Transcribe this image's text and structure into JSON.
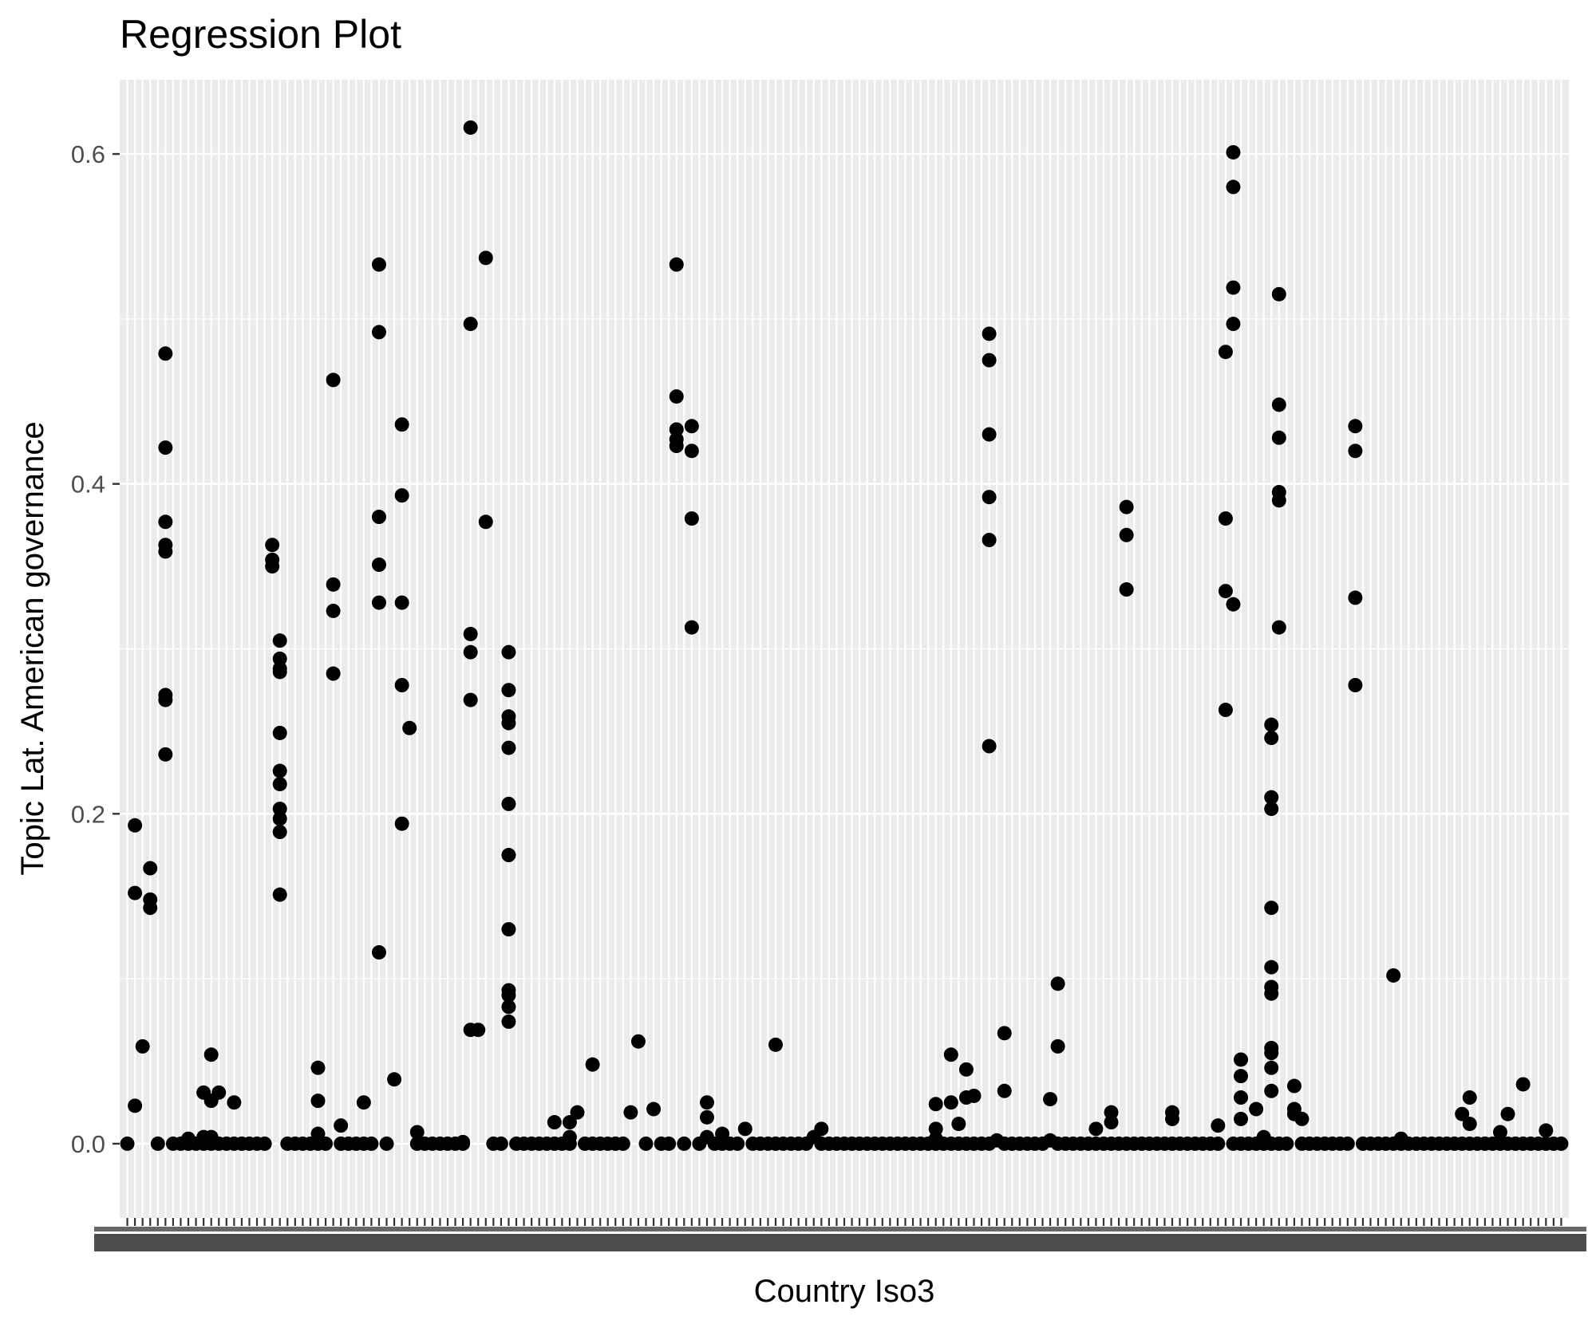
{
  "chart_data": {
    "type": "scatter",
    "title": "Regression Plot",
    "xlabel": "Country Iso3",
    "ylabel": "Topic Lat. American governance",
    "x_axis": "categorical",
    "x_tick_labels_overlapping": true,
    "ylim": [
      -0.045,
      0.645
    ],
    "y_ticks": [
      0.0,
      0.2,
      0.4,
      0.6
    ],
    "y_tick_labels": [
      "0.0",
      "0.2",
      "0.4",
      "0.6"
    ],
    "grid": true,
    "background": "#ebebeb",
    "point_color": "#000000",
    "category_count": 189,
    "points": [
      [
        0,
        0.0
      ],
      [
        1,
        0.193
      ],
      [
        1,
        0.152
      ],
      [
        1,
        0.023
      ],
      [
        2,
        0.059
      ],
      [
        3,
        0.167
      ],
      [
        3,
        0.148
      ],
      [
        3,
        0.143
      ],
      [
        4,
        0.0
      ],
      [
        5,
        0.479
      ],
      [
        5,
        0.422
      ],
      [
        5,
        0.377
      ],
      [
        5,
        0.363
      ],
      [
        5,
        0.359
      ],
      [
        5,
        0.272
      ],
      [
        5,
        0.269
      ],
      [
        5,
        0.236
      ],
      [
        6,
        0.0
      ],
      [
        7,
        0.0
      ],
      [
        8,
        0.003
      ],
      [
        8,
        0.0
      ],
      [
        9,
        0.0
      ],
      [
        10,
        0.031
      ],
      [
        10,
        0.004
      ],
      [
        10,
        0.0
      ],
      [
        11,
        0.054
      ],
      [
        11,
        0.026
      ],
      [
        11,
        0.004
      ],
      [
        11,
        0.0
      ],
      [
        12,
        0.031
      ],
      [
        12,
        0.0
      ],
      [
        13,
        0.0
      ],
      [
        14,
        0.025
      ],
      [
        14,
        0.0
      ],
      [
        15,
        0.0
      ],
      [
        16,
        0.0
      ],
      [
        17,
        0.0
      ],
      [
        18,
        0.0
      ],
      [
        19,
        0.363
      ],
      [
        19,
        0.354
      ],
      [
        19,
        0.35
      ],
      [
        20,
        0.305
      ],
      [
        20,
        0.294
      ],
      [
        20,
        0.288
      ],
      [
        20,
        0.286
      ],
      [
        20,
        0.249
      ],
      [
        20,
        0.226
      ],
      [
        20,
        0.218
      ],
      [
        20,
        0.203
      ],
      [
        20,
        0.197
      ],
      [
        20,
        0.189
      ],
      [
        20,
        0.151
      ],
      [
        21,
        0.0
      ],
      [
        22,
        0.0
      ],
      [
        23,
        0.0
      ],
      [
        24,
        0.0
      ],
      [
        25,
        0.046
      ],
      [
        25,
        0.026
      ],
      [
        25,
        0.006
      ],
      [
        25,
        0.0
      ],
      [
        26,
        0.0
      ],
      [
        27,
        0.463
      ],
      [
        27,
        0.339
      ],
      [
        27,
        0.323
      ],
      [
        27,
        0.285
      ],
      [
        28,
        0.011
      ],
      [
        28,
        0.0
      ],
      [
        29,
        0.0
      ],
      [
        30,
        0.0
      ],
      [
        31,
        0.025
      ],
      [
        31,
        0.0
      ],
      [
        32,
        0.0
      ],
      [
        33,
        0.533
      ],
      [
        33,
        0.492
      ],
      [
        33,
        0.38
      ],
      [
        33,
        0.351
      ],
      [
        33,
        0.328
      ],
      [
        33,
        0.116
      ],
      [
        34,
        0.0
      ],
      [
        35,
        0.039
      ],
      [
        36,
        0.436
      ],
      [
        36,
        0.393
      ],
      [
        36,
        0.328
      ],
      [
        36,
        0.278
      ],
      [
        36,
        0.194
      ],
      [
        37,
        0.252
      ],
      [
        38,
        0.007
      ],
      [
        38,
        0.0
      ],
      [
        39,
        0.0
      ],
      [
        40,
        0.0
      ],
      [
        41,
        0.0
      ],
      [
        42,
        0.0
      ],
      [
        43,
        0.0
      ],
      [
        44,
        0.001
      ],
      [
        44,
        0.0
      ],
      [
        45,
        0.616
      ],
      [
        45,
        0.497
      ],
      [
        45,
        0.309
      ],
      [
        45,
        0.298
      ],
      [
        45,
        0.269
      ],
      [
        45,
        0.069
      ],
      [
        46,
        0.069
      ],
      [
        47,
        0.537
      ],
      [
        47,
        0.377
      ],
      [
        48,
        0.0
      ],
      [
        49,
        0.0
      ],
      [
        50,
        0.298
      ],
      [
        50,
        0.275
      ],
      [
        50,
        0.259
      ],
      [
        50,
        0.255
      ],
      [
        50,
        0.24
      ],
      [
        50,
        0.206
      ],
      [
        50,
        0.175
      ],
      [
        50,
        0.13
      ],
      [
        50,
        0.093
      ],
      [
        50,
        0.09
      ],
      [
        50,
        0.083
      ],
      [
        50,
        0.074
      ],
      [
        51,
        0.0
      ],
      [
        52,
        0.0
      ],
      [
        53,
        0.0
      ],
      [
        54,
        0.0
      ],
      [
        55,
        0.0
      ],
      [
        56,
        0.013
      ],
      [
        56,
        0.0
      ],
      [
        57,
        0.0
      ],
      [
        58,
        0.013
      ],
      [
        58,
        0.004
      ],
      [
        58,
        0.0
      ],
      [
        59,
        0.019
      ],
      [
        60,
        0.0
      ],
      [
        61,
        0.048
      ],
      [
        61,
        0.0
      ],
      [
        62,
        0.0
      ],
      [
        63,
        0.0
      ],
      [
        64,
        0.0
      ],
      [
        65,
        0.0
      ],
      [
        66,
        0.019
      ],
      [
        67,
        0.062
      ],
      [
        68,
        0.0
      ],
      [
        69,
        0.021
      ],
      [
        70,
        0.0
      ],
      [
        71,
        0.0
      ],
      [
        72,
        0.533
      ],
      [
        72,
        0.453
      ],
      [
        72,
        0.433
      ],
      [
        72,
        0.427
      ],
      [
        72,
        0.423
      ],
      [
        73,
        0.0
      ],
      [
        74,
        0.435
      ],
      [
        74,
        0.42
      ],
      [
        74,
        0.379
      ],
      [
        74,
        0.313
      ],
      [
        75,
        0.0
      ],
      [
        76,
        0.025
      ],
      [
        76,
        0.016
      ],
      [
        76,
        0.004
      ],
      [
        77,
        0.0
      ],
      [
        78,
        0.006
      ],
      [
        78,
        0.0
      ],
      [
        79,
        0.0
      ],
      [
        80,
        0.0
      ],
      [
        81,
        0.009
      ],
      [
        82,
        0.0
      ],
      [
        83,
        0.0
      ],
      [
        84,
        0.0
      ],
      [
        85,
        0.06
      ],
      [
        85,
        0.0
      ],
      [
        86,
        0.0
      ],
      [
        87,
        0.0
      ],
      [
        88,
        0.0
      ],
      [
        89,
        0.0
      ],
      [
        90,
        0.004
      ],
      [
        91,
        0.009
      ],
      [
        91,
        0.0
      ],
      [
        92,
        0.0
      ],
      [
        93,
        0.0
      ],
      [
        94,
        0.0
      ],
      [
        95,
        0.0
      ],
      [
        96,
        0.0
      ],
      [
        97,
        0.0
      ],
      [
        98,
        0.0
      ],
      [
        99,
        0.0
      ],
      [
        100,
        0.0
      ],
      [
        101,
        0.0
      ],
      [
        102,
        0.0
      ],
      [
        103,
        0.0
      ],
      [
        104,
        0.0
      ],
      [
        105,
        0.0
      ],
      [
        106,
        0.024
      ],
      [
        106,
        0.009
      ],
      [
        106,
        0.003
      ],
      [
        106,
        0.0
      ],
      [
        107,
        0.0
      ],
      [
        108,
        0.054
      ],
      [
        108,
        0.025
      ],
      [
        108,
        0.0
      ],
      [
        109,
        0.012
      ],
      [
        109,
        0.0
      ],
      [
        110,
        0.045
      ],
      [
        110,
        0.028
      ],
      [
        110,
        0.0
      ],
      [
        111,
        0.029
      ],
      [
        111,
        0.0
      ],
      [
        112,
        0.0
      ],
      [
        113,
        0.491
      ],
      [
        113,
        0.475
      ],
      [
        113,
        0.43
      ],
      [
        113,
        0.392
      ],
      [
        113,
        0.366
      ],
      [
        113,
        0.241
      ],
      [
        113,
        0.0
      ],
      [
        114,
        0.002
      ],
      [
        115,
        0.067
      ],
      [
        115,
        0.032
      ],
      [
        115,
        0.0
      ],
      [
        116,
        0.0
      ],
      [
        117,
        0.0
      ],
      [
        118,
        0.0
      ],
      [
        119,
        0.0
      ],
      [
        120,
        0.0
      ],
      [
        121,
        0.027
      ],
      [
        121,
        0.002
      ],
      [
        122,
        0.097
      ],
      [
        122,
        0.059
      ],
      [
        122,
        0.0
      ],
      [
        123,
        0.0
      ],
      [
        124,
        0.0
      ],
      [
        125,
        0.0
      ],
      [
        126,
        0.0
      ],
      [
        127,
        0.009
      ],
      [
        127,
        0.0
      ],
      [
        128,
        0.0
      ],
      [
        129,
        0.019
      ],
      [
        129,
        0.013
      ],
      [
        129,
        0.0
      ],
      [
        130,
        0.0
      ],
      [
        131,
        0.386
      ],
      [
        131,
        0.369
      ],
      [
        131,
        0.336
      ],
      [
        131,
        0.0
      ],
      [
        132,
        0.0
      ],
      [
        133,
        0.0
      ],
      [
        134,
        0.0
      ],
      [
        135,
        0.0
      ],
      [
        136,
        0.0
      ],
      [
        137,
        0.019
      ],
      [
        137,
        0.015
      ],
      [
        137,
        0.0
      ],
      [
        138,
        0.0
      ],
      [
        139,
        0.0
      ],
      [
        140,
        0.0
      ],
      [
        141,
        0.0
      ],
      [
        142,
        0.0
      ],
      [
        143,
        0.011
      ],
      [
        143,
        0.0
      ],
      [
        144,
        0.48
      ],
      [
        144,
        0.379
      ],
      [
        144,
        0.335
      ],
      [
        144,
        0.263
      ],
      [
        145,
        0.601
      ],
      [
        145,
        0.58
      ],
      [
        145,
        0.519
      ],
      [
        145,
        0.497
      ],
      [
        145,
        0.327
      ],
      [
        145,
        0.0
      ],
      [
        146,
        0.051
      ],
      [
        146,
        0.041
      ],
      [
        146,
        0.028
      ],
      [
        146,
        0.015
      ],
      [
        146,
        0.0
      ],
      [
        147,
        0.0
      ],
      [
        148,
        0.021
      ],
      [
        148,
        0.0
      ],
      [
        149,
        0.004
      ],
      [
        149,
        0.0
      ],
      [
        150,
        0.254
      ],
      [
        150,
        0.246
      ],
      [
        150,
        0.21
      ],
      [
        150,
        0.203
      ],
      [
        150,
        0.143
      ],
      [
        150,
        0.107
      ],
      [
        150,
        0.095
      ],
      [
        150,
        0.091
      ],
      [
        150,
        0.058
      ],
      [
        150,
        0.055
      ],
      [
        150,
        0.046
      ],
      [
        150,
        0.032
      ],
      [
        150,
        0.0
      ],
      [
        151,
        0.515
      ],
      [
        151,
        0.448
      ],
      [
        151,
        0.428
      ],
      [
        151,
        0.395
      ],
      [
        151,
        0.39
      ],
      [
        151,
        0.313
      ],
      [
        151,
        0.0
      ],
      [
        152,
        0.0
      ],
      [
        153,
        0.035
      ],
      [
        153,
        0.021
      ],
      [
        153,
        0.018
      ],
      [
        154,
        0.015
      ],
      [
        154,
        0.0
      ],
      [
        155,
        0.0
      ],
      [
        156,
        0.0
      ],
      [
        157,
        0.0
      ],
      [
        158,
        0.0
      ],
      [
        159,
        0.0
      ],
      [
        160,
        0.0
      ],
      [
        161,
        0.435
      ],
      [
        161,
        0.42
      ],
      [
        161,
        0.331
      ],
      [
        161,
        0.278
      ],
      [
        162,
        0.0
      ],
      [
        163,
        0.0
      ],
      [
        164,
        0.0
      ],
      [
        165,
        0.0
      ],
      [
        166,
        0.102
      ],
      [
        166,
        0.0
      ],
      [
        167,
        0.003
      ],
      [
        167,
        0.0
      ],
      [
        168,
        0.0
      ],
      [
        169,
        0.0
      ],
      [
        170,
        0.0
      ],
      [
        171,
        0.0
      ],
      [
        172,
        0.0
      ],
      [
        173,
        0.0
      ],
      [
        174,
        0.0
      ],
      [
        175,
        0.018
      ],
      [
        175,
        0.0
      ],
      [
        176,
        0.028
      ],
      [
        176,
        0.012
      ],
      [
        176,
        0.0
      ],
      [
        177,
        0.0
      ],
      [
        178,
        0.0
      ],
      [
        179,
        0.0
      ],
      [
        180,
        0.007
      ],
      [
        180,
        0.0
      ],
      [
        181,
        0.018
      ],
      [
        181,
        0.0
      ],
      [
        182,
        0.0
      ],
      [
        183,
        0.036
      ],
      [
        183,
        0.0
      ],
      [
        184,
        0.0
      ],
      [
        185,
        0.0
      ],
      [
        186,
        0.008
      ],
      [
        186,
        0.0
      ],
      [
        187,
        0.0
      ],
      [
        188,
        0.0
      ]
    ]
  }
}
